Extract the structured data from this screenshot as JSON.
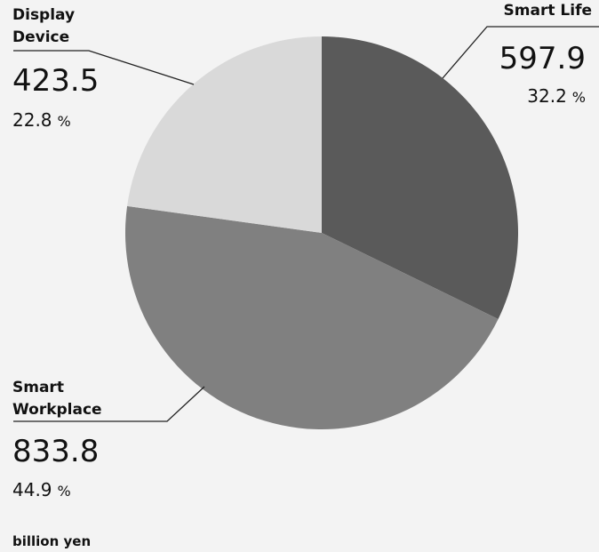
{
  "chart_data": {
    "type": "pie",
    "categories": [
      "Smart Life",
      "Smart Workplace",
      "Display Device"
    ],
    "values": [
      597.9,
      833.8,
      423.5
    ],
    "percentages": [
      32.2,
      44.9,
      22.8
    ],
    "percent_unit": "%",
    "colors": [
      "#5a5a5a",
      "#808080",
      "#d9d9d9"
    ],
    "unit_label": "billion yen"
  }
}
